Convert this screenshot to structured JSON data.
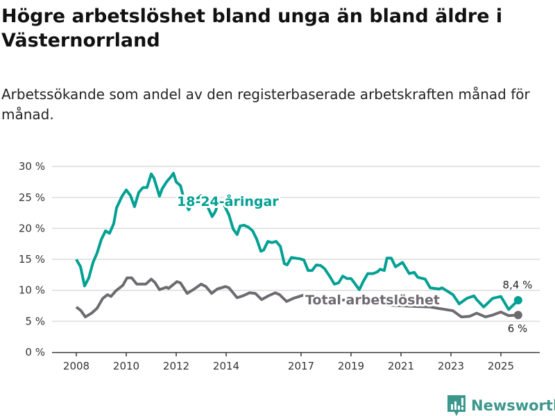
{
  "chart_data": {
    "type": "line",
    "title": "Högre arbetslöshet bland unga än bland äldre i Västernorrland",
    "subtitle": "Arbetssökande som andel av den registerbaserade arbetskraften månad för månad.",
    "xlabel": "",
    "ylabel": "",
    "ylim": [
      0,
      30
    ],
    "xlim": [
      2007,
      2026.5
    ],
    "yticks": [
      0,
      5,
      10,
      15,
      20,
      25,
      30
    ],
    "ytick_labels": [
      "0 %",
      "5 %",
      "10 %",
      "15 %",
      "20 %",
      "25 %",
      "30 %"
    ],
    "xticks": [
      2008,
      2010,
      2012,
      2014,
      2017,
      2019,
      2021,
      2023,
      2025
    ],
    "xtick_labels": [
      "2008",
      "2010",
      "2012",
      "2014",
      "2017",
      "2019",
      "2021",
      "2023",
      "2025"
    ],
    "grid": true,
    "series": [
      {
        "name": "18-24-åringar",
        "color": "#00a093",
        "end_label": "8,4 %",
        "points": [
          [
            2008.0,
            15.0
          ],
          [
            2008.17,
            13.8
          ],
          [
            2008.33,
            10.7
          ],
          [
            2008.5,
            12
          ],
          [
            2008.67,
            14.5
          ],
          [
            2008.83,
            16
          ],
          [
            2009.0,
            18.2
          ],
          [
            2009.17,
            19.6
          ],
          [
            2009.33,
            19.2
          ],
          [
            2009.5,
            20.8
          ],
          [
            2009.61,
            23.3
          ],
          [
            2009.83,
            25.2
          ],
          [
            2010.0,
            26.2
          ],
          [
            2010.17,
            25.3
          ],
          [
            2010.33,
            23.5
          ],
          [
            2010.5,
            25.8
          ],
          [
            2010.67,
            26.6
          ],
          [
            2010.83,
            26.6
          ],
          [
            2011.0,
            28.8
          ],
          [
            2011.11,
            28.1
          ],
          [
            2011.33,
            25.2
          ],
          [
            2011.44,
            26.4
          ],
          [
            2011.61,
            27.5
          ],
          [
            2011.78,
            28.3
          ],
          [
            2011.89,
            28.9
          ],
          [
            2012.0,
            27.5
          ],
          [
            2012.17,
            26.9
          ],
          [
            2012.33,
            24.4
          ],
          [
            2012.5,
            23.0
          ],
          [
            2012.72,
            24.4
          ],
          [
            2013.0,
            25.3
          ],
          [
            2013.28,
            23.3
          ],
          [
            2013.44,
            21.9
          ],
          [
            2013.56,
            22.7
          ],
          [
            2013.72,
            24.4
          ],
          [
            2013.89,
            24
          ],
          [
            2014.11,
            22.2
          ],
          [
            2014.28,
            19.9
          ],
          [
            2014.44,
            19
          ],
          [
            2014.56,
            20.4
          ],
          [
            2014.72,
            20.5
          ],
          [
            2014.89,
            20.2
          ],
          [
            2015.06,
            19.6
          ],
          [
            2015.22,
            18.3
          ],
          [
            2015.39,
            16.3
          ],
          [
            2015.5,
            16.5
          ],
          [
            2015.67,
            17.9
          ],
          [
            2015.83,
            17.7
          ],
          [
            2016.0,
            17.9
          ],
          [
            2016.17,
            17.1
          ],
          [
            2016.33,
            14.3
          ],
          [
            2016.44,
            14.1
          ],
          [
            2016.61,
            15.3
          ],
          [
            2016.78,
            15.2
          ],
          [
            2016.94,
            15.1
          ],
          [
            2017.11,
            14.9
          ],
          [
            2017.28,
            13.2
          ],
          [
            2017.44,
            13.2
          ],
          [
            2017.61,
            14.1
          ],
          [
            2017.78,
            14
          ],
          [
            2017.94,
            13.5
          ],
          [
            2018.17,
            12.1
          ],
          [
            2018.33,
            11
          ],
          [
            2018.5,
            11.2
          ],
          [
            2018.67,
            12.3
          ],
          [
            2018.83,
            11.9
          ],
          [
            2019.0,
            11.9
          ],
          [
            2019.17,
            11
          ],
          [
            2019.33,
            10.1
          ],
          [
            2019.5,
            11.5
          ],
          [
            2019.67,
            12.7
          ],
          [
            2019.89,
            12.7
          ],
          [
            2020.06,
            13
          ],
          [
            2020.17,
            13.4
          ],
          [
            2020.33,
            13.2
          ],
          [
            2020.44,
            15.2
          ],
          [
            2020.61,
            15.2
          ],
          [
            2020.78,
            13.8
          ],
          [
            2021.06,
            14.5
          ],
          [
            2021.33,
            12.7
          ],
          [
            2021.53,
            12.9
          ],
          [
            2021.67,
            12.1
          ],
          [
            2021.97,
            11.8
          ],
          [
            2022.17,
            10.4
          ],
          [
            2022.53,
            10.2
          ],
          [
            2022.64,
            10.4
          ],
          [
            2023.08,
            9.3
          ],
          [
            2023.33,
            7.8
          ],
          [
            2023.64,
            8.7
          ],
          [
            2023.92,
            9.1
          ],
          [
            2024.03,
            8.5
          ],
          [
            2024.31,
            7.3
          ],
          [
            2024.67,
            8.7
          ],
          [
            2025.0,
            9.0
          ],
          [
            2025.31,
            6.9
          ],
          [
            2025.69,
            8.4
          ]
        ]
      },
      {
        "name": "Total arbetslöshet",
        "color": "#6d6a70",
        "end_label": "6 %",
        "points": [
          [
            2008.0,
            7.3
          ],
          [
            2008.19,
            6.7
          ],
          [
            2008.36,
            5.7
          ],
          [
            2008.61,
            6.3
          ],
          [
            2008.83,
            7.1
          ],
          [
            2009.06,
            8.7
          ],
          [
            2009.25,
            9.3
          ],
          [
            2009.39,
            9.0
          ],
          [
            2009.58,
            9.9
          ],
          [
            2009.86,
            10.8
          ],
          [
            2010.03,
            12.0
          ],
          [
            2010.22,
            12.0
          ],
          [
            2010.42,
            11.0
          ],
          [
            2010.58,
            11.0
          ],
          [
            2010.78,
            11.0
          ],
          [
            2011.0,
            11.8
          ],
          [
            2011.14,
            11.3
          ],
          [
            2011.33,
            10.1
          ],
          [
            2011.61,
            10.5
          ],
          [
            2011.69,
            10.3
          ],
          [
            2012.03,
            11.4
          ],
          [
            2012.17,
            11.2
          ],
          [
            2012.44,
            9.5
          ],
          [
            2012.72,
            10.2
          ],
          [
            2013.0,
            11.0
          ],
          [
            2013.19,
            10.6
          ],
          [
            2013.42,
            9.5
          ],
          [
            2013.64,
            10.2
          ],
          [
            2013.97,
            10.6
          ],
          [
            2014.11,
            10.4
          ],
          [
            2014.44,
            8.8
          ],
          [
            2014.67,
            9.1
          ],
          [
            2014.94,
            9.6
          ],
          [
            2015.17,
            9.5
          ],
          [
            2015.42,
            8.5
          ],
          [
            2015.69,
            9.1
          ],
          [
            2015.97,
            9.6
          ],
          [
            2016.14,
            9.3
          ],
          [
            2016.42,
            8.2
          ],
          [
            2016.69,
            8.7
          ],
          [
            2017.08,
            9.2
          ],
          [
            2017.5,
            9.0
          ],
          [
            2018.0,
            8.8
          ],
          [
            2018.5,
            8.5
          ],
          [
            2019.0,
            8.3
          ],
          [
            2019.5,
            8.0
          ],
          [
            2020.0,
            7.8
          ],
          [
            2020.5,
            7.6
          ],
          [
            2021.0,
            7.5
          ],
          [
            2021.5,
            7.4
          ],
          [
            2022.17,
            7.3
          ],
          [
            2023.08,
            6.7
          ],
          [
            2023.42,
            5.7
          ],
          [
            2023.75,
            5.8
          ],
          [
            2024.03,
            6.3
          ],
          [
            2024.39,
            5.7
          ],
          [
            2024.67,
            6.0
          ],
          [
            2025.0,
            6.5
          ],
          [
            2025.31,
            5.9
          ],
          [
            2025.69,
            6.0
          ]
        ]
      }
    ]
  },
  "brand": {
    "name": "Newsworthy",
    "color": "#3c978d"
  }
}
